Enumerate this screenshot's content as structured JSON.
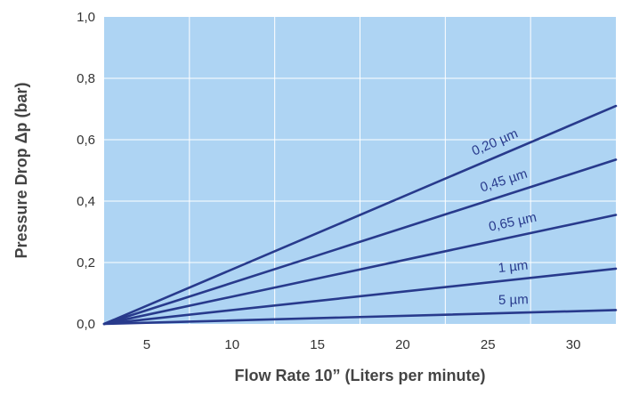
{
  "chart_data": {
    "type": "line",
    "xlabel": "Flow Rate 10” (Liters per minute)",
    "ylabel": "Pressure Drop Δp (bar)",
    "xlim": [
      2.5,
      32.5
    ],
    "ylim": [
      0.0,
      1.0
    ],
    "x_ticks": [
      "5",
      "10",
      "15",
      "20",
      "25",
      "30"
    ],
    "x_tick_values": [
      5,
      10,
      15,
      20,
      25,
      30
    ],
    "y_ticks": [
      "0,0",
      "0,2",
      "0,4",
      "0,6",
      "0,8",
      "1,0"
    ],
    "y_tick_values": [
      0.0,
      0.2,
      0.4,
      0.6,
      0.8,
      1.0
    ],
    "grid": true,
    "plot_background": "#aed4f3",
    "grid_color": "#ffffff",
    "line_color": "#283a8c",
    "series": [
      {
        "name": "0,20 µm",
        "x": [
          2.5,
          32.5
        ],
        "y": [
          0.0,
          0.71
        ]
      },
      {
        "name": "0,45 µm",
        "x": [
          2.5,
          32.5
        ],
        "y": [
          0.0,
          0.535
        ]
      },
      {
        "name": "0,65 µm",
        "x": [
          2.5,
          32.5
        ],
        "y": [
          0.0,
          0.355
        ]
      },
      {
        "name": "1 µm",
        "x": [
          2.5,
          32.5
        ],
        "y": [
          0.0,
          0.18
        ]
      },
      {
        "name": "5 µm",
        "x": [
          2.5,
          32.5
        ],
        "y": [
          0.0,
          0.045
        ]
      }
    ]
  }
}
